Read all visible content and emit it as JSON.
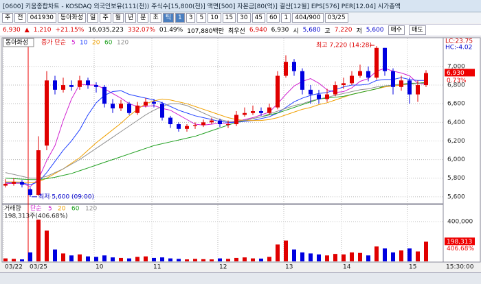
{
  "window": {
    "title": "[0600] 키움종합차트 - KOSDAQ 외국인보유(111(천)) 주식수[15,800(천)] 액면[500] 자본금[80(억)] 결산[12월] EPS[576] PER[12.04] 시가총액",
    "toolbar": [
      "주",
      "전",
      "041930",
      "동아화성",
      "일",
      "주",
      "월",
      "년",
      "분",
      "초",
      "틱",
      "1",
      "3",
      "5",
      "10",
      "15",
      "30",
      "45",
      "60",
      "1",
      "404/900",
      "03/25"
    ],
    "info": [
      "6,930",
      "▲",
      "1,210",
      "+21.15%",
      "16,035,223",
      "332.07%",
      "01.49%",
      "107,880백만",
      "최우선",
      "6,940",
      "6,930",
      "시",
      "5,680",
      "고",
      "7,220",
      "저",
      "5,600",
      "매수",
      "매도"
    ]
  },
  "chart_data": [
    {
      "type": "candlestick",
      "legend_title": "동아화성",
      "legend_label": "증가 단순",
      "categories": [
        "03/22",
        null,
        null,
        "03/25",
        null,
        null,
        null,
        null,
        null,
        null,
        null,
        "10",
        null,
        null,
        null,
        null,
        null,
        null,
        "11",
        null,
        null,
        null,
        null,
        null,
        null,
        null,
        "12",
        null,
        null,
        null,
        null,
        null,
        null,
        null,
        "13",
        null,
        null,
        null,
        null,
        null,
        null,
        "14",
        null,
        null,
        null,
        null,
        null,
        null,
        null,
        "15",
        null,
        null
      ],
      "open": [
        5720,
        5740,
        5760,
        5680,
        5620,
        6150,
        6850,
        6750,
        6800,
        6780,
        6850,
        6800,
        6780,
        6600,
        6550,
        6600,
        6500,
        6580,
        6620,
        6600,
        6450,
        6380,
        6330,
        6360,
        6370,
        6400,
        6420,
        6380,
        6380,
        6480,
        6500,
        6520,
        6500,
        6560,
        6900,
        7050,
        6950,
        6750,
        6700,
        6650,
        6700,
        6800,
        6820,
        6900,
        6950,
        6880,
        7200,
        6950,
        6780,
        6850,
        6700,
        6800
      ],
      "high": [
        5790,
        5800,
        5780,
        5700,
        6250,
        6950,
        6900,
        6880,
        6850,
        6900,
        6880,
        6830,
        6800,
        6650,
        6640,
        6620,
        6620,
        6660,
        6650,
        6620,
        6470,
        6400,
        6380,
        6400,
        6430,
        6450,
        6440,
        6420,
        6520,
        6560,
        6580,
        6560,
        6600,
        6950,
        7120,
        7080,
        6980,
        6800,
        6750,
        6760,
        6840,
        6880,
        6950,
        7020,
        7000,
        7220,
        7200,
        6980,
        6900,
        6880,
        6850,
        6960
      ],
      "low": [
        5700,
        5720,
        5700,
        5600,
        5610,
        6100,
        6700,
        6720,
        6740,
        6750,
        6760,
        6720,
        6560,
        6500,
        6520,
        6480,
        6480,
        6560,
        6560,
        6420,
        6340,
        6300,
        6300,
        6330,
        6350,
        6380,
        6350,
        6340,
        6360,
        6460,
        6480,
        6470,
        6480,
        6540,
        6880,
        6900,
        6700,
        6600,
        6600,
        6620,
        6680,
        6760,
        6800,
        6880,
        6840,
        6860,
        6900,
        6700,
        6740,
        6600,
        6620,
        6780
      ],
      "close": [
        5740,
        5760,
        5730,
        5620,
        6100,
        6850,
        6750,
        6800,
        6780,
        6850,
        6800,
        6780,
        6600,
        6550,
        6600,
        6500,
        6580,
        6620,
        6600,
        6450,
        6380,
        6330,
        6360,
        6370,
        6400,
        6420,
        6380,
        6380,
        6480,
        6500,
        6520,
        6500,
        6560,
        6900,
        7050,
        6950,
        6750,
        6700,
        6650,
        6700,
        6800,
        6820,
        6900,
        6950,
        6880,
        7200,
        6950,
        6780,
        6850,
        6700,
        6800,
        6930
      ],
      "series": [
        {
          "name": "5",
          "color": "#d020d0",
          "values": [
            5740,
            5745,
            5745,
            5710,
            5790,
            5990,
            6150,
            6420,
            6650,
            6810,
            6800,
            6800,
            6760,
            6710,
            6660,
            6600,
            6570,
            6570,
            6580,
            6550,
            6530,
            6480,
            6430,
            6380,
            6370,
            6380,
            6390,
            6390,
            6410,
            6430,
            6450,
            6480,
            6510,
            6600,
            6700,
            6790,
            6840,
            6870,
            6820,
            6750,
            6720,
            6730,
            6770,
            6840,
            6870,
            6950,
            6980,
            6950,
            6930,
            6900,
            6820,
            6810
          ]
        },
        {
          "name": "10",
          "color": "#2040ff",
          "values": [
            5750,
            5750,
            5748,
            5730,
            5760,
            5860,
            5980,
            6100,
            6200,
            6320,
            6480,
            6610,
            6690,
            6730,
            6740,
            6700,
            6680,
            6660,
            6640,
            6610,
            6570,
            6530,
            6500,
            6470,
            6450,
            6430,
            6410,
            6400,
            6400,
            6410,
            6420,
            6440,
            6460,
            6500,
            6560,
            6620,
            6660,
            6690,
            6710,
            6720,
            6750,
            6780,
            6800,
            6800,
            6810,
            6850,
            6860,
            6860,
            6880,
            6860,
            6850,
            6850
          ]
        },
        {
          "name": "20",
          "color": "#f0a000",
          "values": [
            5760,
            5760,
            5758,
            5750,
            5760,
            5800,
            5850,
            5900,
            5960,
            6020,
            6100,
            6180,
            6250,
            6320,
            6390,
            6470,
            6540,
            6600,
            6630,
            6650,
            6640,
            6620,
            6600,
            6570,
            6540,
            6510,
            6480,
            6450,
            6430,
            6420,
            6420,
            6420,
            6430,
            6450,
            6480,
            6510,
            6540,
            6560,
            6590,
            6610,
            6640,
            6670,
            6700,
            6720,
            6740,
            6760,
            6780,
            6790,
            6800,
            6810,
            6820,
            6830
          ]
        },
        {
          "name": "60",
          "color": "#20a020",
          "values": [
            5800,
            5795,
            5790,
            5785,
            5785,
            5795,
            5810,
            5830,
            5850,
            5880,
            5910,
            5940,
            5970,
            6000,
            6030,
            6060,
            6090,
            6120,
            6150,
            6170,
            6190,
            6210,
            6230,
            6250,
            6280,
            6310,
            6340,
            6370,
            6400,
            6420,
            6440,
            6460,
            6480,
            6500,
            6530,
            6560,
            6590,
            6620,
            6650,
            6660,
            6670,
            6680,
            6700,
            6720,
            6740,
            6760,
            6790,
            6800,
            6810,
            6820,
            6820,
            6830
          ]
        },
        {
          "name": "120",
          "color": "#909090",
          "values": [
            5860,
            5840,
            5820,
            5800,
            5800,
            5820,
            5860,
            5900,
            5950,
            6000,
            6060,
            6120,
            6180,
            6240,
            6300,
            6360,
            6420,
            6480,
            6530,
            6570,
            6600,
            6600,
            6580,
            6540,
            6500,
            6460,
            6430,
            6410,
            6410,
            6420,
            6440,
            6460,
            6490,
            6520,
            6550,
            6580,
            6600,
            6630,
            6650,
            6670,
            6690,
            6710,
            6730,
            6750,
            6760,
            6780,
            6790,
            6800,
            6810,
            6810,
            6820,
            6820
          ]
        }
      ],
      "up_color": "#e00000",
      "down_color": "#0000e0",
      "grid": true,
      "ylim": [
        5540,
        7250
      ],
      "yticks": [
        {
          "value": 5600,
          "label": "5,600"
        },
        {
          "value": 5800,
          "label": "5,800"
        },
        {
          "value": 6000,
          "label": "6,000"
        },
        {
          "value": 6200,
          "label": "6,200"
        },
        {
          "value": 6400,
          "label": "6,400"
        },
        {
          "value": 6600,
          "label": "6,600"
        },
        {
          "value": 6800,
          "label": "6,800"
        },
        {
          "value": 7000,
          "label": "7,000"
        }
      ],
      "annotations": [
        "최고 7,220 (14:28)",
        "최저 5,600 (09:00)"
      ],
      "side_labels": [
        "LC:23.75",
        "HC:-4.02"
      ],
      "last_label": "6,930",
      "last_change": "0.73%"
    },
    {
      "type": "bar",
      "legend_title": "거래량",
      "legend_label": "단순",
      "ma_names": [
        "5",
        "20",
        "60",
        "120"
      ],
      "subtitle": "198,313주(406.68%)",
      "values": [
        30000,
        25000,
        20000,
        90000,
        420000,
        310000,
        120000,
        80000,
        60000,
        70000,
        50000,
        45000,
        60000,
        40000,
        35000,
        30000,
        45000,
        50000,
        35000,
        40000,
        30000,
        25000,
        20000,
        25000,
        22000,
        20000,
        30000,
        25000,
        35000,
        40000,
        30000,
        28000,
        45000,
        170000,
        210000,
        120000,
        90000,
        80000,
        70000,
        60000,
        75000,
        70000,
        90000,
        85000,
        60000,
        150000,
        130000,
        90000,
        110000,
        130000,
        100000,
        198313
      ],
      "ylim": [
        0,
        560000
      ],
      "yticks": [
        {
          "value": 400000,
          "label": "400,000"
        }
      ],
      "last_label": "198,313",
      "last_change": "406.68%",
      "time_label": "15:30:00"
    }
  ]
}
